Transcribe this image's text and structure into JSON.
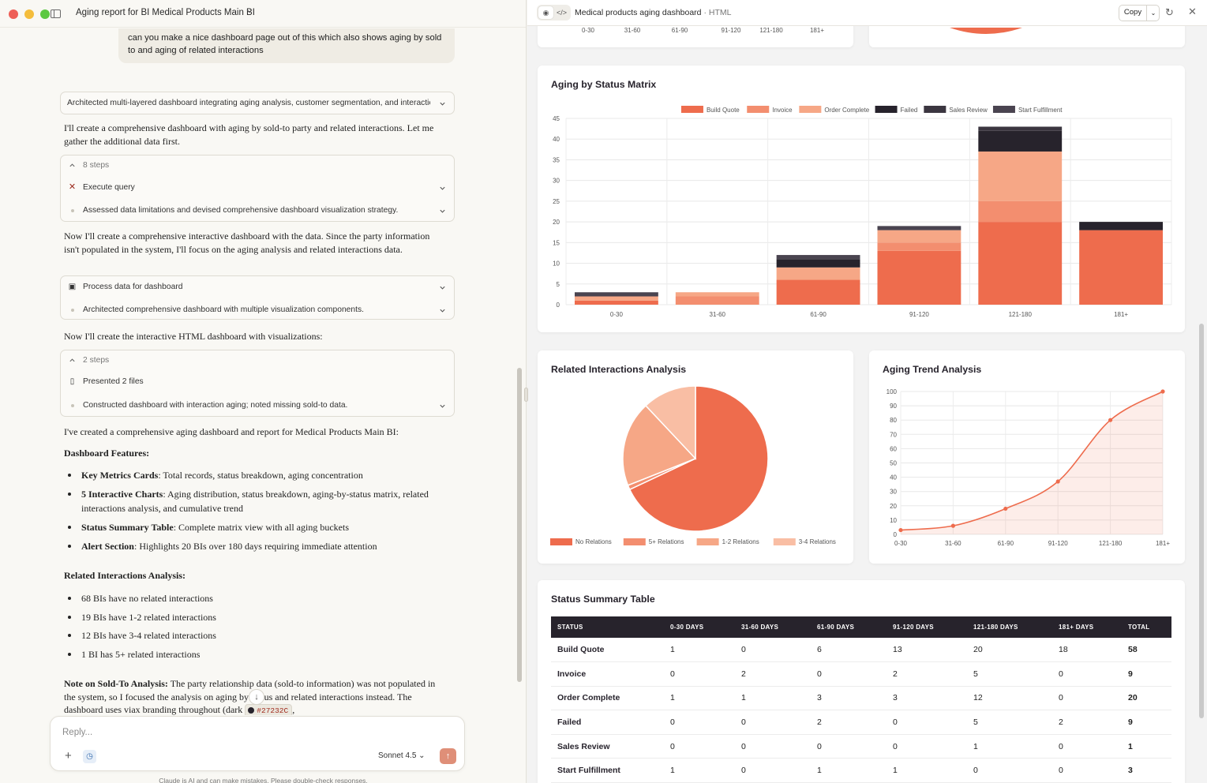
{
  "window": {
    "chat_title": "Aging report for BI Medical Products Main BI"
  },
  "chat": {
    "user_message": "can you make a nice dashboard page out of this which also shows aging by sold to and aging of related interactions",
    "thinking_summary": "Architected multi-layered dashboard integrating aging analysis, customer segmentation, and interaction tracking",
    "p1": "I'll create a comprehensive dashboard with aging by sold-to party and related interactions. Let me gather the additional data first.",
    "steps1": {
      "count": "8 steps",
      "execute_query": "Execute query",
      "assessed": "Assessed data limitations and devised comprehensive dashboard visualization strategy."
    },
    "p2": "Now I'll create a comprehensive interactive dashboard with the data. Since the party information isn't populated in the system, I'll focus on the aging analysis and related interactions data.",
    "process": {
      "label": "Process data for dashboard",
      "architected": "Architected comprehensive dashboard with multiple visualization components."
    },
    "p3": "Now I'll create the interactive HTML dashboard with visualizations:",
    "steps2": {
      "count": "2 steps",
      "presented": "Presented 2 files",
      "constructed": "Constructed dashboard with interaction aging; noted missing sold-to data."
    },
    "p4": "I've created a comprehensive aging dashboard and report for Medical Products Main BI:",
    "features_heading": "Dashboard Features:",
    "features": [
      {
        "bold": "Key Metrics Cards",
        "text": ": Total records, status breakdown, aging concentration"
      },
      {
        "bold": "5 Interactive Charts",
        "text": ": Aging distribution, status breakdown, aging-by-status matrix, related interactions analysis, and cumulative trend"
      },
      {
        "bold": "Status Summary Table",
        "text": ": Complete matrix view with all aging buckets"
      },
      {
        "bold": "Alert Section",
        "text": ": Highlights 20 BIs over 180 days requiring immediate attention"
      }
    ],
    "related_heading": "Related Interactions Analysis:",
    "related": [
      "68 BIs have no related interactions",
      "19 BIs have 1-2 related interactions",
      "12 BIs have 3-4 related interactions",
      "1 BI has 5+ related interactions"
    ],
    "note_bold": "Note on Sold-To Analysis:",
    "note_text": " The party relationship data (sold-to information) was not populated in the system, so I focused the analysis on aging by status and related interactions instead. The dashboard uses viax branding throughout (dark ",
    "note_code": "#27232C",
    "note_tail": ","
  },
  "composer": {
    "placeholder": "Reply...",
    "model": "Sonnet 4.5",
    "disclaimer": "Claude is AI and can make mistakes. Please double-check responses."
  },
  "artifact": {
    "title": "Medical products aging dashboard",
    "type": "· HTML",
    "copy_label": "Copy"
  },
  "colors": {
    "dark": "#27232c",
    "orange": "#ee6c4d",
    "orange2": "#f38e6f",
    "peach": "#f6a786",
    "light_peach": "#f9bea4",
    "grid": "#e8e8e8"
  },
  "top_axis_labels": [
    "0-30",
    "31-60",
    "61-90",
    "91-120",
    "121-180",
    "181+"
  ],
  "chart_data": [
    {
      "id": "aging-by-status",
      "type": "bar",
      "stacked": true,
      "title": "Aging by Status Matrix",
      "categories": [
        "0-30",
        "31-60",
        "61-90",
        "91-120",
        "121-180",
        "181+"
      ],
      "series": [
        {
          "name": "Build Quote",
          "values": [
            1,
            0,
            6,
            13,
            20,
            18
          ],
          "color": "#ee6c4d"
        },
        {
          "name": "Invoice",
          "values": [
            0,
            2,
            0,
            2,
            5,
            0
          ],
          "color": "#f38e6f"
        },
        {
          "name": "Order Complete",
          "values": [
            1,
            1,
            3,
            3,
            12,
            0
          ],
          "color": "#f6a786"
        },
        {
          "name": "Failed",
          "values": [
            0,
            0,
            2,
            0,
            5,
            2
          ],
          "color": "#27232c"
        },
        {
          "name": "Sales Review",
          "values": [
            0,
            0,
            0,
            0,
            1,
            0
          ],
          "color": "#3b3640"
        },
        {
          "name": "Start Fulfillment",
          "values": [
            1,
            0,
            1,
            1,
            0,
            0
          ],
          "color": "#4a4450"
        }
      ],
      "ylim": [
        0,
        45
      ],
      "yticks": [
        0,
        5,
        10,
        15,
        20,
        25,
        30,
        35,
        40,
        45
      ],
      "legend": "top"
    },
    {
      "id": "related-interactions",
      "type": "pie",
      "title": "Related Interactions Analysis",
      "categories": [
        "No Relations",
        "5+ Relations",
        "1-2 Relations",
        "3-4 Relations"
      ],
      "values": [
        68,
        1,
        19,
        12
      ],
      "colors": [
        "#ee6c4d",
        "#f38e6f",
        "#f6a786",
        "#f9bea4"
      ],
      "legend": "bottom"
    },
    {
      "id": "aging-trend",
      "type": "area",
      "title": "Aging Trend Analysis",
      "x": [
        "0-30",
        "31-60",
        "61-90",
        "91-120",
        "121-180",
        "181+"
      ],
      "y": [
        3,
        6,
        18,
        37,
        80,
        100
      ],
      "ylim": [
        0,
        100
      ],
      "yticks": [
        0,
        10,
        20,
        30,
        40,
        50,
        60,
        70,
        80,
        90,
        100
      ],
      "color": "#ee6c4d"
    }
  ],
  "summary_table": {
    "title": "Status Summary Table",
    "headers": [
      "STATUS",
      "0-30 DAYS",
      "31-60 DAYS",
      "61-90 DAYS",
      "91-120 DAYS",
      "121-180 DAYS",
      "181+ DAYS",
      "TOTAL"
    ],
    "rows": [
      [
        "Build Quote",
        "1",
        "0",
        "6",
        "13",
        "20",
        "18",
        "58"
      ],
      [
        "Invoice",
        "0",
        "2",
        "0",
        "2",
        "5",
        "0",
        "9"
      ],
      [
        "Order Complete",
        "1",
        "1",
        "3",
        "3",
        "12",
        "0",
        "20"
      ],
      [
        "Failed",
        "0",
        "0",
        "2",
        "0",
        "5",
        "2",
        "9"
      ],
      [
        "Sales Review",
        "0",
        "0",
        "0",
        "0",
        "1",
        "0",
        "1"
      ],
      [
        "Start Fulfillment",
        "1",
        "0",
        "1",
        "1",
        "0",
        "0",
        "3"
      ]
    ]
  }
}
